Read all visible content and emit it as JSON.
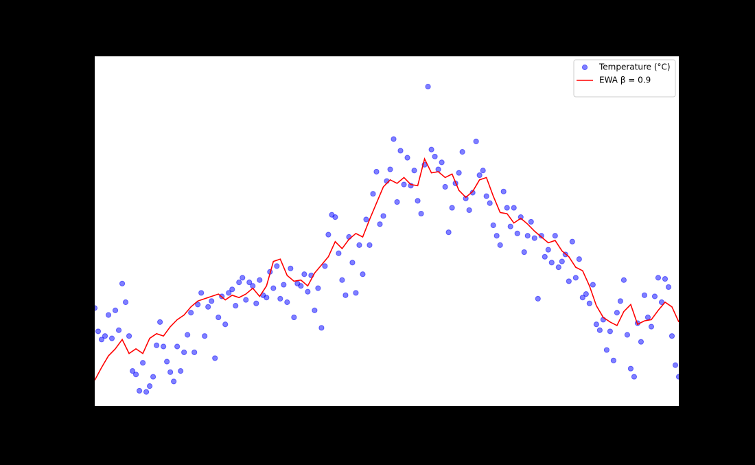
{
  "chart_data": {
    "type": "scatter",
    "xlim": [
      0,
      170
    ],
    "ylim": [
      0,
      30
    ],
    "legend": "upper right",
    "series": [
      {
        "name": "Temperature (°C)",
        "type": "scatter",
        "color": "#0000ff",
        "x": [
          0,
          1,
          2,
          3,
          4,
          5,
          6,
          7,
          8,
          9,
          10,
          11,
          12,
          13,
          14,
          15,
          16,
          17,
          18,
          19,
          20,
          21,
          22,
          23,
          24,
          25,
          26,
          27,
          28,
          29,
          30,
          31,
          32,
          33,
          34,
          35,
          36,
          37,
          38,
          39,
          40,
          41,
          42,
          43,
          44,
          45,
          46,
          47,
          48,
          49,
          50,
          51,
          52,
          53,
          54,
          55,
          56,
          57,
          58,
          59,
          60,
          61,
          62,
          63,
          64,
          65,
          66,
          67,
          68,
          69,
          70,
          71,
          72,
          73,
          74,
          75,
          76,
          77,
          78,
          79,
          80,
          81,
          82,
          83,
          84,
          85,
          86,
          87,
          88,
          89,
          90,
          91,
          92,
          93,
          94,
          95,
          96,
          97,
          98,
          99,
          100,
          101,
          102,
          103,
          104,
          105,
          106,
          107,
          108,
          109,
          110,
          111,
          112,
          113,
          114,
          115,
          116,
          117,
          118,
          119,
          120,
          121,
          122,
          123,
          124,
          125,
          126,
          127,
          128,
          129,
          130,
          131,
          132,
          133,
          134,
          135,
          136,
          137,
          138,
          139,
          140,
          141,
          142,
          143,
          144,
          145,
          146,
          147,
          148,
          149,
          150,
          151,
          152,
          153,
          154,
          155,
          156,
          157,
          158,
          159,
          160,
          161,
          162,
          163,
          164,
          165,
          166,
          167,
          168,
          169,
          170
        ],
        "values": [
          8.4,
          6.4,
          5.7,
          6.0,
          7.8,
          5.8,
          8.2,
          6.5,
          10.5,
          8.9,
          6.0,
          3.0,
          2.7,
          1.3,
          3.7,
          1.2,
          1.7,
          2.5,
          5.2,
          7.2,
          5.1,
          3.8,
          2.9,
          2.1,
          5.1,
          3.0,
          4.6,
          6.1,
          8.0,
          4.6,
          8.7,
          9.7,
          6.0,
          8.5,
          9.0,
          4.1,
          7.6,
          9.4,
          7.0,
          9.7,
          10.0,
          8.6,
          10.6,
          11.0,
          9.1,
          10.6,
          10.3,
          8.8,
          10.8,
          9.5,
          9.3,
          11.5,
          10.1,
          12.0,
          9.2,
          10.4,
          8.9,
          11.8,
          7.6,
          10.5,
          10.3,
          11.3,
          9.8,
          11.2,
          8.2,
          10.1,
          6.7,
          12.0,
          14.7,
          16.4,
          16.2,
          13.1,
          10.8,
          9.5,
          14.5,
          12.3,
          9.7,
          13.8,
          11.3,
          16.0,
          13.8,
          18.2,
          20.1,
          15.6,
          16.3,
          19.3,
          20.3,
          22.9,
          17.5,
          21.9,
          19.0,
          21.3,
          18.9,
          20.2,
          17.6,
          16.5,
          20.7,
          27.4,
          22.0,
          21.4,
          20.3,
          20.9,
          18.8,
          14.9,
          17.0,
          19.1,
          20.0,
          21.8,
          17.8,
          16.8,
          18.3,
          22.7,
          19.8,
          20.2,
          18.0,
          17.4,
          15.5,
          14.6,
          13.8,
          18.4,
          17.0,
          15.4,
          17.0,
          14.8,
          16.2,
          13.2,
          14.6,
          15.8,
          14.4,
          9.2,
          14.6,
          12.8,
          13.4,
          12.3,
          14.6,
          11.9,
          12.4,
          13.0,
          10.7,
          14.1,
          11.0,
          12.6,
          9.3,
          9.6,
          8.8,
          10.4,
          7.0,
          6.5,
          7.4,
          4.8,
          6.4,
          3.9,
          8.0,
          9.0,
          10.8,
          6.1,
          3.2,
          2.5,
          7.1,
          5.5,
          9.5,
          7.6,
          6.8,
          9.4,
          11.0,
          8.9,
          10.9,
          10.2,
          6.0,
          3.5,
          2.5
        ]
      },
      {
        "name": "EWA β = 0.9",
        "type": "line",
        "color": "#ff0000",
        "x": [
          0,
          2,
          4,
          6,
          8,
          10,
          12,
          14,
          16,
          18,
          20,
          22,
          24,
          26,
          28,
          30,
          32,
          34,
          36,
          38,
          40,
          42,
          44,
          46,
          48,
          50,
          52,
          54,
          56,
          58,
          60,
          62,
          64,
          66,
          68,
          70,
          72,
          74,
          76,
          78,
          80,
          82,
          84,
          86,
          88,
          90,
          92,
          94,
          96,
          98,
          100,
          102,
          104,
          106,
          108,
          110,
          112,
          114,
          116,
          118,
          120,
          122,
          124,
          126,
          128,
          130,
          132,
          134,
          136,
          138,
          140,
          142,
          144,
          146,
          148,
          150,
          152,
          154,
          156,
          158,
          160,
          162,
          164,
          166,
          168,
          170
        ],
        "values": [
          2.2,
          3.3,
          4.3,
          4.9,
          5.7,
          4.5,
          4.9,
          4.5,
          5.8,
          6.2,
          6.0,
          6.8,
          7.4,
          7.8,
          8.5,
          9.0,
          9.2,
          9.4,
          9.6,
          9.1,
          9.5,
          9.3,
          9.6,
          10.1,
          9.4,
          10.3,
          12.4,
          12.6,
          11.2,
          10.7,
          10.8,
          10.3,
          11.4,
          12.1,
          12.8,
          14.1,
          13.5,
          14.3,
          14.8,
          14.5,
          16.0,
          17.4,
          18.8,
          19.4,
          19.1,
          19.6,
          19.0,
          18.9,
          21.2,
          20.0,
          20.1,
          19.6,
          19.9,
          18.5,
          17.9,
          18.4,
          19.4,
          19.6,
          18.0,
          16.6,
          16.5,
          15.7,
          16.1,
          15.6,
          15.0,
          14.5,
          14.0,
          14.2,
          13.3,
          12.8,
          11.9,
          11.6,
          10.3,
          8.6,
          7.6,
          7.2,
          6.9,
          8.1,
          8.7,
          7.0,
          7.3,
          7.4,
          8.2,
          8.9,
          8.5,
          7.2
        ]
      }
    ]
  }
}
